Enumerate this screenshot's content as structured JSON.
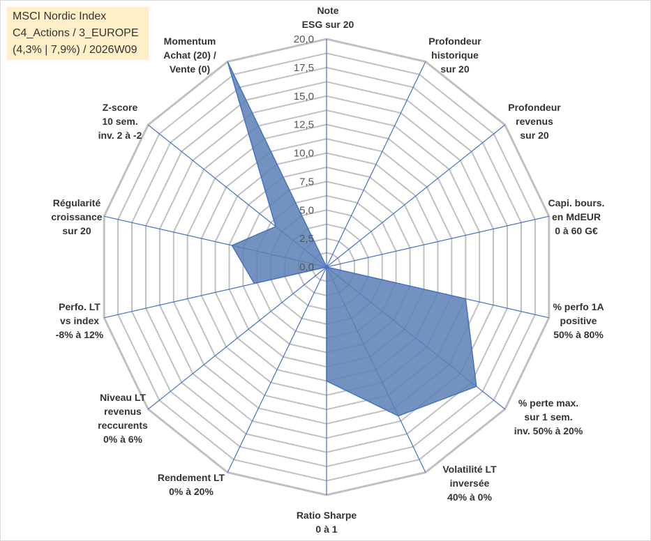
{
  "title_box": {
    "line1": "MSCI Nordic Index",
    "line2": "C4_Actions / 3_EUROPE",
    "line3": "(4,3% | 7,9%) / 2026W09"
  },
  "chart_data": {
    "type": "radar",
    "rlim": [
      0,
      20
    ],
    "ticks": [
      "0,0",
      "2,5",
      "5,0",
      "7,5",
      "10,0",
      "12,5",
      "15,0",
      "17,5",
      "20,0"
    ],
    "grid": true,
    "categories": [
      [
        "Note",
        "ESG sur 20"
      ],
      [
        "Profondeur",
        "historique",
        "sur 20"
      ],
      [
        "Profondeur",
        "revenus",
        "sur 20"
      ],
      [
        "Capi. bours.",
        "en MdEUR",
        "0 à 60 G€"
      ],
      [
        "% perfo 1A",
        "positive",
        "50% à 80%"
      ],
      [
        "% perte max.",
        "sur 1 sem.",
        "inv. 50% à 20%"
      ],
      [
        "Volatilité LT",
        "inversée",
        "40% à 0%"
      ],
      [
        "Ratio Sharpe",
        "0 à 1"
      ],
      [
        "Rendement LT",
        "0% à 20%"
      ],
      [
        "Niveau LT",
        "revenus",
        "reccurents",
        "0% à 6%"
      ],
      [
        "Perfo. LT",
        "vs index",
        "-8% à 12%"
      ],
      [
        "Régularité",
        "croissance",
        "sur 20"
      ],
      [
        "Z-score",
        "10 sem.",
        "inv. 2 à -2"
      ],
      [
        "Momentum",
        "Achat (20) /",
        "Vente (0)"
      ]
    ],
    "series": [
      {
        "values": [
          0,
          0,
          0,
          0,
          12.5,
          16.8,
          14.5,
          10.0,
          0,
          0,
          6.5,
          8.5,
          5.7,
          20.0
        ]
      }
    ],
    "colors": {
      "fill": "#5b7fb5",
      "stroke": "#4472c4",
      "grid": "#c0c0c0",
      "spoke": "#4472c4"
    }
  }
}
